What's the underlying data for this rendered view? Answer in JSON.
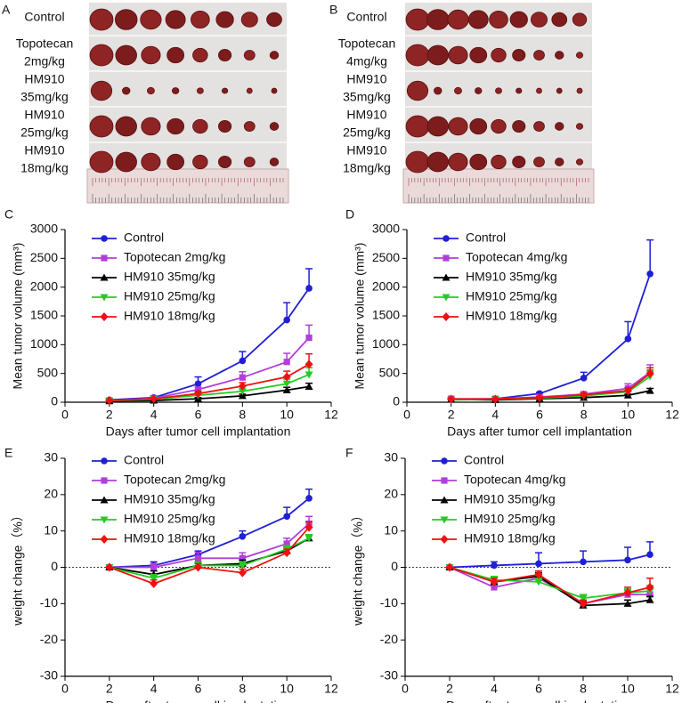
{
  "photos": [
    {
      "panel": "A",
      "rows": [
        [
          "Control"
        ],
        [
          "Topotecan",
          "2mg/kg"
        ],
        [
          "HM910",
          "35mg/kg"
        ],
        [
          "HM910",
          "25mg/kg"
        ],
        [
          "HM910",
          "18mg/kg"
        ]
      ]
    },
    {
      "panel": "B",
      "rows": [
        [
          "Control"
        ],
        [
          "Topotecan",
          "4mg/kg"
        ],
        [
          "HM910",
          "35mg/kg"
        ],
        [
          "HM910",
          "25mg/kg"
        ],
        [
          "HM910",
          "18mg/kg"
        ]
      ]
    }
  ],
  "chart_data": [
    {
      "type": "line",
      "panel": "C",
      "xlabel": "Days after tumor cell implantation",
      "ylabel": "Mean tumor volume (mm³)",
      "x": [
        2,
        4,
        6,
        8,
        10,
        11
      ],
      "xlim": [
        0,
        12
      ],
      "xticks": [
        0,
        2,
        4,
        6,
        8,
        10,
        12
      ],
      "ylim": [
        0,
        3000
      ],
      "yticks": [
        0,
        500,
        1000,
        1500,
        2000,
        2500,
        3000
      ],
      "zero_line": false,
      "series": [
        {
          "name": "Control",
          "color": "#1f1fd6",
          "marker": "circle",
          "values": [
            40,
            80,
            320,
            720,
            1430,
            1980
          ],
          "errors": [
            20,
            30,
            120,
            160,
            300,
            340
          ]
        },
        {
          "name": "Topotecan 2mg/kg",
          "color": "#b33ddb",
          "marker": "square",
          "values": [
            30,
            70,
            220,
            430,
            700,
            1120
          ],
          "errors": [
            10,
            20,
            40,
            100,
            150,
            220
          ]
        },
        {
          "name": "HM910 35mg/kg",
          "color": "#000000",
          "marker": "triangle-up",
          "values": [
            20,
            30,
            60,
            110,
            210,
            270
          ],
          "errors": [
            5,
            10,
            20,
            30,
            50,
            60
          ]
        },
        {
          "name": "HM910 25mg/kg",
          "color": "#22cc22",
          "marker": "triangle-down",
          "values": [
            25,
            50,
            120,
            190,
            320,
            480
          ],
          "errors": [
            5,
            10,
            30,
            40,
            80,
            120
          ]
        },
        {
          "name": "HM910 18mg/kg",
          "color": "#ee1111",
          "marker": "diamond",
          "values": [
            30,
            60,
            150,
            280,
            440,
            660
          ],
          "errors": [
            10,
            15,
            40,
            60,
            100,
            180
          ]
        }
      ]
    },
    {
      "type": "line",
      "panel": "D",
      "xlabel": "Days after tumor cell implantation",
      "ylabel": "Mean tumor volume (mm³)",
      "x": [
        2,
        4,
        6,
        8,
        10,
        11
      ],
      "xlim": [
        0,
        12
      ],
      "xticks": [
        0,
        2,
        4,
        6,
        8,
        10,
        12
      ],
      "ylim": [
        0,
        3000
      ],
      "yticks": [
        0,
        500,
        1000,
        1500,
        2000,
        2500,
        3000
      ],
      "zero_line": false,
      "series": [
        {
          "name": "Control",
          "color": "#1f1fd6",
          "marker": "circle",
          "values": [
            50,
            60,
            150,
            420,
            1100,
            2230
          ],
          "errors": [
            10,
            10,
            20,
            100,
            300,
            590
          ]
        },
        {
          "name": "Topotecan 4mg/kg",
          "color": "#b33ddb",
          "marker": "square",
          "values": [
            60,
            60,
            90,
            140,
            240,
            520
          ],
          "errors": [
            10,
            10,
            15,
            30,
            80,
            130
          ]
        },
        {
          "name": "HM910 35mg/kg",
          "color": "#000000",
          "marker": "triangle-up",
          "values": [
            50,
            40,
            60,
            80,
            120,
            200
          ],
          "errors": [
            5,
            5,
            10,
            15,
            20,
            40
          ]
        },
        {
          "name": "HM910 25mg/kg",
          "color": "#22cc22",
          "marker": "triangle-down",
          "values": [
            40,
            50,
            70,
            110,
            180,
            450
          ],
          "errors": [
            5,
            5,
            10,
            20,
            40,
            100
          ]
        },
        {
          "name": "HM910 18mg/kg",
          "color": "#ee1111",
          "marker": "diamond",
          "values": [
            55,
            55,
            80,
            130,
            200,
            500
          ],
          "errors": [
            10,
            10,
            15,
            25,
            50,
            100
          ]
        }
      ]
    },
    {
      "type": "line",
      "panel": "E",
      "xlabel": "Days after tumor cell implantation",
      "ylabel": "weight change（%）",
      "x": [
        2,
        4,
        6,
        8,
        10,
        11
      ],
      "xlim": [
        0,
        12
      ],
      "xticks": [
        0,
        2,
        4,
        6,
        8,
        10,
        12
      ],
      "ylim": [
        -30,
        30
      ],
      "yticks": [
        -30,
        -20,
        -10,
        0,
        10,
        20,
        30
      ],
      "zero_line": true,
      "series": [
        {
          "name": "Control",
          "color": "#1f1fd6",
          "marker": "circle",
          "values": [
            0,
            0.5,
            3.5,
            8.5,
            14,
            19
          ],
          "errors": [
            0,
            1,
            1,
            1.5,
            2.5,
            2.5
          ]
        },
        {
          "name": "Topotecan 2mg/kg",
          "color": "#b33ddb",
          "marker": "square",
          "values": [
            0,
            0,
            2.5,
            2.5,
            6.5,
            12
          ],
          "errors": [
            0,
            1,
            1.5,
            1.5,
            1.5,
            2
          ]
        },
        {
          "name": "HM910 35mg/kg",
          "color": "#000000",
          "marker": "triangle-up",
          "values": [
            0,
            -2,
            0.5,
            1,
            4.5,
            8
          ],
          "errors": [
            0,
            1,
            1,
            1,
            1,
            1
          ]
        },
        {
          "name": "HM910 25mg/kg",
          "color": "#22cc22",
          "marker": "triangle-down",
          "values": [
            0,
            -3,
            0.5,
            0.5,
            5,
            8
          ],
          "errors": [
            0,
            1,
            1,
            1,
            1,
            1
          ]
        },
        {
          "name": "HM910 18mg/kg",
          "color": "#ee1111",
          "marker": "diamond",
          "values": [
            0,
            -4.5,
            0,
            -1.5,
            4,
            11
          ],
          "errors": [
            0,
            1,
            1,
            1,
            1,
            1.5
          ]
        }
      ]
    },
    {
      "type": "line",
      "panel": "F",
      "xlabel": "Days after tumor cell implantation",
      "ylabel": "weight change（%）",
      "x": [
        2,
        4,
        6,
        8,
        10,
        11
      ],
      "xlim": [
        0,
        12
      ],
      "xticks": [
        0,
        2,
        4,
        6,
        8,
        10,
        12
      ],
      "ylim": [
        -30,
        30
      ],
      "yticks": [
        -30,
        -20,
        -10,
        0,
        10,
        20,
        30
      ],
      "zero_line": true,
      "series": [
        {
          "name": "Control",
          "color": "#1f1fd6",
          "marker": "circle",
          "values": [
            0,
            0.5,
            1,
            1.5,
            2,
            3.5
          ],
          "errors": [
            0,
            1,
            3,
            3,
            3.5,
            3.5
          ]
        },
        {
          "name": "Topotecan 4mg/kg",
          "color": "#b33ddb",
          "marker": "square",
          "values": [
            0,
            -5.5,
            -3,
            -10,
            -7.5,
            -7.5
          ],
          "errors": [
            0,
            1,
            1,
            1,
            1.5,
            1.5
          ]
        },
        {
          "name": "HM910 35mg/kg",
          "color": "#000000",
          "marker": "triangle-up",
          "values": [
            0,
            -4,
            -2.5,
            -10.5,
            -10,
            -9
          ],
          "errors": [
            0,
            1,
            1,
            1,
            1,
            1
          ]
        },
        {
          "name": "HM910 25mg/kg",
          "color": "#22cc22",
          "marker": "triangle-down",
          "values": [
            0,
            -3.5,
            -4,
            -8.5,
            -7,
            -6.5
          ],
          "errors": [
            0,
            1,
            1,
            1,
            1,
            1.5
          ]
        },
        {
          "name": "HM910 18mg/kg",
          "color": "#ee1111",
          "marker": "diamond",
          "values": [
            0,
            -4,
            -2,
            -10,
            -7,
            -5.5
          ],
          "errors": [
            0,
            1,
            1,
            1,
            1.5,
            2.5
          ]
        }
      ]
    }
  ]
}
